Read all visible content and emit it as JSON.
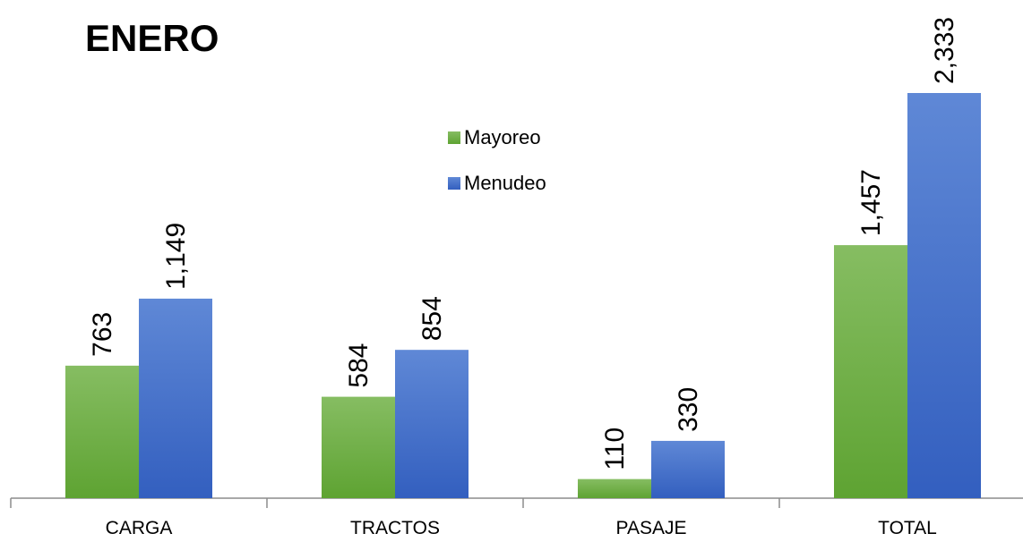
{
  "chart_data": {
    "type": "bar",
    "title": "ENERO",
    "xlabel": "",
    "ylabel": "",
    "categories": [
      "CARGA",
      "TRACTOS",
      "PASAJE",
      "TOTAL"
    ],
    "series": [
      {
        "name": "Mayoreo",
        "values": [
          763,
          584,
          110,
          1457
        ],
        "labels": [
          "763",
          "584",
          "110",
          "1,457"
        ],
        "color": "#70ad47"
      },
      {
        "name": "Menudeo",
        "values": [
          1149,
          854,
          330,
          2333
        ],
        "labels": [
          "1,149",
          "854",
          "330",
          "2,333"
        ],
        "color": "#4472c4"
      }
    ],
    "ylim": [
      0,
      2333
    ],
    "grid": false,
    "legend_position": "top-center",
    "data_label_orientation": "vertical"
  }
}
